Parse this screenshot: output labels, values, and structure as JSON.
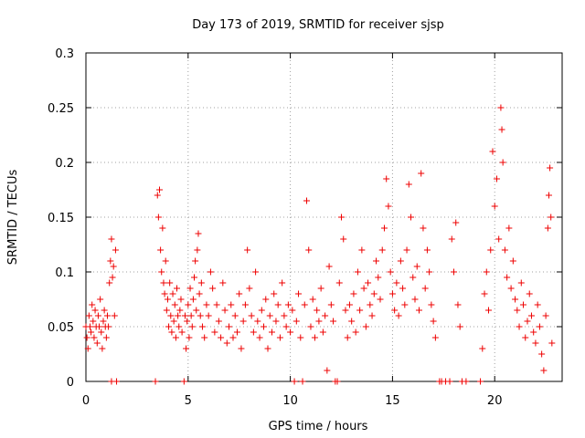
{
  "chart_data": {
    "type": "scatter",
    "title": "Day 173 of 2019, SRMTID for receiver sjsp",
    "xlabel": "GPS time / hours",
    "ylabel": "SRMTID / TECUs",
    "xlim": [
      0,
      23.3
    ],
    "ylim": [
      0,
      0.3
    ],
    "xticks": [
      0,
      5,
      10,
      15,
      20
    ],
    "xtick_labels": [
      "0",
      "5",
      "10",
      "15",
      "20"
    ],
    "yticks": [
      0,
      0.05,
      0.1,
      0.15,
      0.2,
      0.25,
      0.3
    ],
    "ytick_labels": [
      "0",
      "0.05",
      "0.1",
      "0.15",
      "0.2",
      "0.25",
      "0.3"
    ],
    "grid": true,
    "marker": "+",
    "color": "#ee0000",
    "series": [
      {
        "name": "SRMTID",
        "points": [
          [
            0.0,
            0.05
          ],
          [
            0.05,
            0.04
          ],
          [
            0.1,
            0.03
          ],
          [
            0.15,
            0.06
          ],
          [
            0.2,
            0.05
          ],
          [
            0.25,
            0.045
          ],
          [
            0.3,
            0.07
          ],
          [
            0.35,
            0.055
          ],
          [
            0.4,
            0.04
          ],
          [
            0.45,
            0.065
          ],
          [
            0.5,
            0.05
          ],
          [
            0.55,
            0.035
          ],
          [
            0.6,
            0.06
          ],
          [
            0.65,
            0.05
          ],
          [
            0.7,
            0.075
          ],
          [
            0.75,
            0.045
          ],
          [
            0.8,
            0.03
          ],
          [
            0.85,
            0.055
          ],
          [
            0.9,
            0.065
          ],
          [
            0.95,
            0.05
          ],
          [
            1.0,
            0.04
          ],
          [
            1.05,
            0.06
          ],
          [
            1.1,
            0.05
          ],
          [
            1.15,
            0.09
          ],
          [
            1.2,
            0.11
          ],
          [
            1.25,
            0.13
          ],
          [
            1.3,
            0.095
          ],
          [
            1.35,
            0.105
          ],
          [
            1.4,
            0.06
          ],
          [
            1.45,
            0.12
          ],
          [
            1.25,
            0.0
          ],
          [
            1.5,
            0.0
          ],
          [
            3.4,
            0.0
          ],
          [
            3.5,
            0.17
          ],
          [
            3.55,
            0.15
          ],
          [
            3.6,
            0.175
          ],
          [
            3.65,
            0.12
          ],
          [
            3.7,
            0.1
          ],
          [
            3.75,
            0.14
          ],
          [
            3.8,
            0.09
          ],
          [
            3.85,
            0.08
          ],
          [
            3.9,
            0.11
          ],
          [
            3.95,
            0.065
          ],
          [
            4.0,
            0.075
          ],
          [
            4.05,
            0.05
          ],
          [
            4.1,
            0.09
          ],
          [
            4.15,
            0.06
          ],
          [
            4.2,
            0.045
          ],
          [
            4.25,
            0.08
          ],
          [
            4.3,
            0.055
          ],
          [
            4.35,
            0.07
          ],
          [
            4.4,
            0.04
          ],
          [
            4.45,
            0.085
          ],
          [
            4.5,
            0.06
          ],
          [
            4.55,
            0.05
          ],
          [
            4.6,
            0.065
          ],
          [
            4.65,
            0.075
          ],
          [
            4.7,
            0.045
          ],
          [
            4.8,
            0.0
          ],
          [
            4.85,
            0.06
          ],
          [
            4.9,
            0.03
          ],
          [
            4.95,
            0.055
          ],
          [
            5.0,
            0.07
          ],
          [
            5.05,
            0.04
          ],
          [
            5.1,
            0.085
          ],
          [
            5.15,
            0.06
          ],
          [
            5.2,
            0.05
          ],
          [
            5.25,
            0.075
          ],
          [
            5.3,
            0.095
          ],
          [
            5.35,
            0.11
          ],
          [
            5.4,
            0.065
          ],
          [
            5.45,
            0.12
          ],
          [
            5.5,
            0.135
          ],
          [
            5.55,
            0.08
          ],
          [
            5.6,
            0.06
          ],
          [
            5.65,
            0.09
          ],
          [
            5.7,
            0.05
          ],
          [
            5.8,
            0.04
          ],
          [
            5.9,
            0.07
          ],
          [
            6.0,
            0.06
          ],
          [
            6.1,
            0.1
          ],
          [
            6.2,
            0.085
          ],
          [
            6.3,
            0.045
          ],
          [
            6.4,
            0.07
          ],
          [
            6.5,
            0.055
          ],
          [
            6.6,
            0.04
          ],
          [
            6.7,
            0.09
          ],
          [
            6.8,
            0.065
          ],
          [
            6.9,
            0.035
          ],
          [
            7.0,
            0.05
          ],
          [
            7.1,
            0.07
          ],
          [
            7.2,
            0.04
          ],
          [
            7.3,
            0.06
          ],
          [
            7.4,
            0.045
          ],
          [
            7.5,
            0.08
          ],
          [
            7.6,
            0.03
          ],
          [
            7.7,
            0.055
          ],
          [
            7.8,
            0.07
          ],
          [
            7.9,
            0.12
          ],
          [
            8.0,
            0.085
          ],
          [
            8.1,
            0.06
          ],
          [
            8.2,
            0.045
          ],
          [
            8.3,
            0.1
          ],
          [
            8.4,
            0.055
          ],
          [
            8.5,
            0.04
          ],
          [
            8.6,
            0.065
          ],
          [
            8.7,
            0.05
          ],
          [
            8.8,
            0.075
          ],
          [
            8.9,
            0.03
          ],
          [
            9.0,
            0.06
          ],
          [
            9.1,
            0.045
          ],
          [
            9.2,
            0.08
          ],
          [
            9.3,
            0.055
          ],
          [
            9.4,
            0.07
          ],
          [
            9.5,
            0.04
          ],
          [
            9.6,
            0.09
          ],
          [
            9.7,
            0.06
          ],
          [
            9.8,
            0.05
          ],
          [
            9.9,
            0.07
          ],
          [
            10.0,
            0.045
          ],
          [
            10.1,
            0.065
          ],
          [
            10.2,
            0.0
          ],
          [
            10.3,
            0.055
          ],
          [
            10.4,
            0.08
          ],
          [
            10.5,
            0.04
          ],
          [
            10.6,
            0.0
          ],
          [
            10.7,
            0.07
          ],
          [
            10.8,
            0.165
          ],
          [
            10.9,
            0.12
          ],
          [
            11.0,
            0.05
          ],
          [
            11.1,
            0.075
          ],
          [
            11.2,
            0.04
          ],
          [
            11.3,
            0.065
          ],
          [
            11.4,
            0.055
          ],
          [
            11.5,
            0.085
          ],
          [
            11.6,
            0.045
          ],
          [
            11.7,
            0.06
          ],
          [
            11.8,
            0.01
          ],
          [
            11.9,
            0.105
          ],
          [
            12.0,
            0.07
          ],
          [
            12.1,
            0.055
          ],
          [
            12.2,
            0.0
          ],
          [
            12.3,
            0.0
          ],
          [
            12.4,
            0.09
          ],
          [
            12.5,
            0.15
          ],
          [
            12.6,
            0.13
          ],
          [
            12.7,
            0.065
          ],
          [
            12.8,
            0.04
          ],
          [
            12.9,
            0.07
          ],
          [
            13.0,
            0.055
          ],
          [
            13.1,
            0.08
          ],
          [
            13.2,
            0.045
          ],
          [
            13.3,
            0.1
          ],
          [
            13.4,
            0.065
          ],
          [
            13.5,
            0.12
          ],
          [
            13.6,
            0.085
          ],
          [
            13.7,
            0.05
          ],
          [
            13.8,
            0.09
          ],
          [
            13.9,
            0.07
          ],
          [
            14.0,
            0.06
          ],
          [
            14.1,
            0.08
          ],
          [
            14.2,
            0.11
          ],
          [
            14.3,
            0.095
          ],
          [
            14.4,
            0.075
          ],
          [
            14.5,
            0.12
          ],
          [
            14.6,
            0.14
          ],
          [
            14.7,
            0.185
          ],
          [
            14.8,
            0.16
          ],
          [
            14.9,
            0.1
          ],
          [
            15.0,
            0.08
          ],
          [
            15.1,
            0.065
          ],
          [
            15.2,
            0.09
          ],
          [
            15.3,
            0.06
          ],
          [
            15.4,
            0.11
          ],
          [
            15.5,
            0.085
          ],
          [
            15.6,
            0.07
          ],
          [
            15.7,
            0.12
          ],
          [
            15.8,
            0.18
          ],
          [
            15.9,
            0.15
          ],
          [
            16.0,
            0.095
          ],
          [
            16.1,
            0.075
          ],
          [
            16.2,
            0.105
          ],
          [
            16.3,
            0.065
          ],
          [
            16.4,
            0.19
          ],
          [
            16.5,
            0.14
          ],
          [
            16.6,
            0.085
          ],
          [
            16.7,
            0.12
          ],
          [
            16.8,
            0.1
          ],
          [
            16.9,
            0.07
          ],
          [
            17.0,
            0.055
          ],
          [
            17.1,
            0.04
          ],
          [
            17.3,
            0.0
          ],
          [
            17.4,
            0.0
          ],
          [
            17.6,
            0.0
          ],
          [
            17.8,
            0.0
          ],
          [
            17.9,
            0.13
          ],
          [
            18.0,
            0.1
          ],
          [
            18.1,
            0.145
          ],
          [
            18.2,
            0.07
          ],
          [
            18.3,
            0.05
          ],
          [
            18.4,
            0.0
          ],
          [
            18.6,
            0.0
          ],
          [
            19.3,
            0.0
          ],
          [
            19.4,
            0.03
          ],
          [
            19.5,
            0.08
          ],
          [
            19.6,
            0.1
          ],
          [
            19.7,
            0.065
          ],
          [
            19.8,
            0.12
          ],
          [
            19.9,
            0.21
          ],
          [
            20.0,
            0.16
          ],
          [
            20.1,
            0.185
          ],
          [
            20.2,
            0.13
          ],
          [
            20.3,
            0.25
          ],
          [
            20.35,
            0.23
          ],
          [
            20.4,
            0.2
          ],
          [
            20.5,
            0.12
          ],
          [
            20.6,
            0.095
          ],
          [
            20.7,
            0.14
          ],
          [
            20.8,
            0.085
          ],
          [
            20.9,
            0.11
          ],
          [
            21.0,
            0.075
          ],
          [
            21.1,
            0.065
          ],
          [
            21.2,
            0.05
          ],
          [
            21.3,
            0.09
          ],
          [
            21.4,
            0.07
          ],
          [
            21.5,
            0.04
          ],
          [
            21.6,
            0.055
          ],
          [
            21.7,
            0.08
          ],
          [
            21.8,
            0.06
          ],
          [
            21.9,
            0.045
          ],
          [
            22.0,
            0.035
          ],
          [
            22.1,
            0.07
          ],
          [
            22.2,
            0.05
          ],
          [
            22.3,
            0.025
          ],
          [
            22.4,
            0.01
          ],
          [
            22.5,
            0.06
          ],
          [
            22.6,
            0.14
          ],
          [
            22.65,
            0.17
          ],
          [
            22.7,
            0.195
          ],
          [
            22.75,
            0.15
          ],
          [
            22.8,
            0.035
          ]
        ]
      }
    ]
  }
}
